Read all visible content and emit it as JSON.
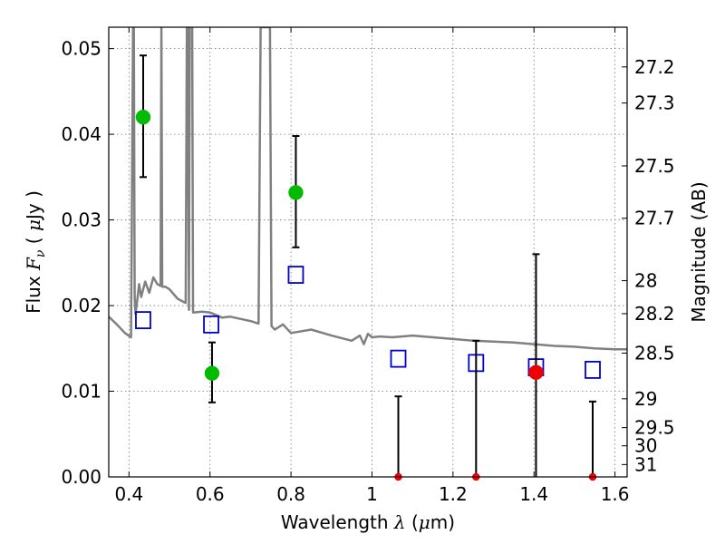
{
  "chart_data": {
    "type": "scatter",
    "title": "",
    "xlabel": {
      "text": "Wavelength",
      "symbol": "λ",
      "unit_open": " (",
      "unit_mu": "μ",
      "unit_rest": "m)"
    },
    "ylabel": {
      "text": "Flux",
      "symbol": "F",
      "subscript": "ν",
      "unit_open": "( ",
      "unit_mu": "μ",
      "unit_rest": "Jy )"
    },
    "y2label": "Magnitude (AB)",
    "xlim": [
      0.35,
      1.63
    ],
    "ylim": [
      0.0,
      0.0525
    ],
    "grid": true,
    "x_ticks": [
      {
        "v": 0.4,
        "label": "0.4"
      },
      {
        "v": 0.6,
        "label": "0.6"
      },
      {
        "v": 0.8,
        "label": "0.8"
      },
      {
        "v": 1.0,
        "label": "1"
      },
      {
        "v": 1.2,
        "label": "1.2"
      },
      {
        "v": 1.4,
        "label": "1.4"
      },
      {
        "v": 1.6,
        "label": "1.6"
      }
    ],
    "y_ticks": [
      {
        "v": 0.0,
        "label": "0.00"
      },
      {
        "v": 0.01,
        "label": "0.01"
      },
      {
        "v": 0.02,
        "label": "0.02"
      },
      {
        "v": 0.03,
        "label": "0.03"
      },
      {
        "v": 0.04,
        "label": "0.04"
      },
      {
        "v": 0.05,
        "label": "0.05"
      }
    ],
    "mag_ticks": [
      {
        "v": 27.2,
        "label": "27.2"
      },
      {
        "v": 27.3,
        "label": "27.3"
      },
      {
        "v": 27.5,
        "label": "27.5"
      },
      {
        "v": 27.7,
        "label": "27.7"
      },
      {
        "v": 28.0,
        "label": "28"
      },
      {
        "v": 28.2,
        "label": "28.2"
      },
      {
        "v": 28.5,
        "label": "28.5"
      },
      {
        "v": 29.0,
        "label": "29"
      },
      {
        "v": 29.5,
        "label": "29.5"
      },
      {
        "v": 30.0,
        "label": "30"
      },
      {
        "v": 31.0,
        "label": "31"
      }
    ],
    "series": [
      {
        "name": "model-spectrum",
        "kind": "line",
        "color": "#808080",
        "x": [
          0.35,
          0.37,
          0.39,
          0.405,
          0.41,
          0.412,
          0.414,
          0.416,
          0.42,
          0.425,
          0.43,
          0.44,
          0.45,
          0.46,
          0.47,
          0.478,
          0.48,
          0.482,
          0.49,
          0.5,
          0.52,
          0.54,
          0.543,
          0.545,
          0.548,
          0.55,
          0.553,
          0.556,
          0.558,
          0.56,
          0.58,
          0.6,
          0.63,
          0.65,
          0.68,
          0.7,
          0.72,
          0.725,
          0.728,
          0.731,
          0.734,
          0.737,
          0.74,
          0.745,
          0.748,
          0.752,
          0.76,
          0.78,
          0.8,
          0.85,
          0.9,
          0.95,
          0.97,
          0.98,
          0.99,
          1.0,
          1.02,
          1.05,
          1.1,
          1.15,
          1.2,
          1.25,
          1.3,
          1.35,
          1.4,
          1.45,
          1.5,
          1.55,
          1.6,
          1.63
        ],
        "y": [
          0.0187,
          0.0178,
          0.0168,
          0.0163,
          0.0525,
          0.0525,
          0.021,
          0.019,
          0.0205,
          0.0225,
          0.021,
          0.0228,
          0.0215,
          0.0233,
          0.0225,
          0.0223,
          0.0525,
          0.0222,
          0.0222,
          0.0219,
          0.0208,
          0.0203,
          0.0525,
          0.0525,
          0.0195,
          0.0525,
          0.0525,
          0.0525,
          0.0192,
          0.0192,
          0.0193,
          0.0192,
          0.0186,
          0.0187,
          0.0184,
          0.0182,
          0.0179,
          0.0525,
          0.0525,
          0.0525,
          0.0525,
          0.0525,
          0.0525,
          0.0525,
          0.0525,
          0.0176,
          0.0172,
          0.0178,
          0.0168,
          0.0172,
          0.0165,
          0.0159,
          0.0165,
          0.0155,
          0.0167,
          0.0163,
          0.0164,
          0.0163,
          0.0165,
          0.0163,
          0.0161,
          0.0159,
          0.0158,
          0.0157,
          0.0155,
          0.0153,
          0.0152,
          0.015,
          0.0149,
          0.0149
        ]
      },
      {
        "name": "model-photometry",
        "kind": "open-square",
        "color": "#0000cc",
        "x": [
          0.435,
          0.603,
          0.812,
          1.065,
          1.257,
          1.405,
          1.545
        ],
        "y": [
          0.0183,
          0.0178,
          0.0236,
          0.0138,
          0.0133,
          0.0128,
          0.0125
        ]
      },
      {
        "name": "detections",
        "kind": "filled-circle",
        "color": "#00bb00",
        "x": [
          0.435,
          0.605,
          0.812
        ],
        "y": [
          0.042,
          0.0121,
          0.0332
        ],
        "err_low": [
          0.035,
          0.0087,
          0.0268
        ],
        "err_high": [
          0.0492,
          0.0157,
          0.0398
        ]
      },
      {
        "name": "low-sn-points",
        "kind": "filled-circle",
        "color": "#ee0000",
        "x": [
          1.065,
          1.257,
          1.405,
          1.545
        ],
        "y": [
          0.0,
          0.0,
          0.0122,
          0.0
        ],
        "err_low": [
          0.0,
          0.0,
          0.0,
          0.0
        ],
        "err_high": [
          0.0094,
          0.0159,
          0.026,
          0.0088
        ]
      }
    ]
  }
}
